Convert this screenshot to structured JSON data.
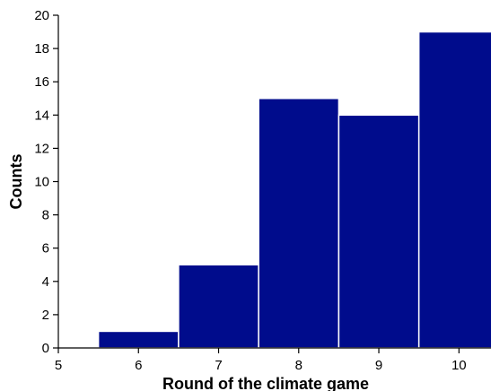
{
  "chart_data": {
    "type": "bar",
    "title": "",
    "xlabel": "Round of the climate game",
    "ylabel": "Counts",
    "categories": [
      "6",
      "7",
      "8",
      "9",
      "10"
    ],
    "x": [
      6,
      7,
      8,
      9,
      10
    ],
    "values": [
      1,
      5,
      15,
      14,
      19
    ],
    "bar_width": 1,
    "xlim": [
      5,
      10.4
    ],
    "ylim": [
      0,
      20
    ],
    "xticks": [
      5,
      6,
      7,
      8,
      9,
      10
    ],
    "yticks": [
      0,
      2,
      4,
      6,
      8,
      10,
      12,
      14,
      16,
      18,
      20
    ],
    "bar_color": "#000c8c",
    "grid": false,
    "legend": "none"
  }
}
